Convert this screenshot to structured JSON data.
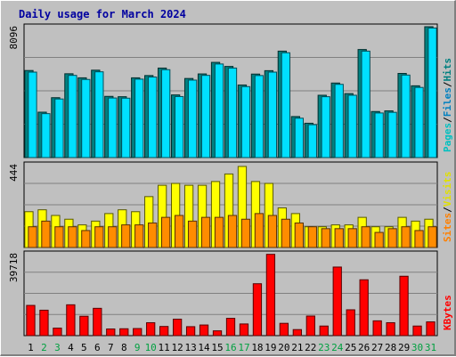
{
  "chart_data": {
    "type": "bar",
    "title": "Daily usage for March 2024",
    "categories": [
      "1",
      "2",
      "3",
      "4",
      "5",
      "6",
      "7",
      "8",
      "9",
      "10",
      "11",
      "12",
      "13",
      "14",
      "15",
      "16",
      "17",
      "18",
      "19",
      "20",
      "21",
      "22",
      "23",
      "24",
      "25",
      "26",
      "27",
      "28",
      "29",
      "30",
      "31"
    ],
    "weekend_days": [
      2,
      3,
      9,
      10,
      16,
      17,
      23,
      24,
      30,
      31
    ],
    "panels": [
      {
        "name": "hits-files-pages",
        "ymax": 8096,
        "ymax_label": "8096",
        "side_labels": [
          {
            "text": "Pages",
            "color": "#00c0c0"
          },
          {
            "text": "/",
            "color": "#000000"
          },
          {
            "text": "Files",
            "color": "#0080c0"
          },
          {
            "text": "/",
            "color": "#000000"
          },
          {
            "text": "Hits",
            "color": "#008080"
          }
        ],
        "series": [
          {
            "name": "Hits",
            "color": "#008080",
            "values": [
              5350,
              2790,
              3680,
              5150,
              4900,
              5370,
              3760,
              3740,
              4900,
              5040,
              5500,
              3850,
              4860,
              5140,
              5850,
              5600,
              4460,
              5130,
              5340,
              6540,
              2520,
              2110,
              3830,
              4580,
              3930,
              6640,
              2830,
              2870,
              5170,
              4410,
              8040
            ]
          },
          {
            "name": "Files",
            "color": "#00e0ff",
            "values": [
              5250,
              2700,
              3600,
              5050,
              4800,
              5270,
              3660,
              3650,
              4820,
              4950,
              5400,
              3750,
              4760,
              5050,
              5750,
              5500,
              4360,
              5040,
              5250,
              6440,
              2420,
              2020,
              3740,
              4500,
              3830,
              6540,
              2740,
              2780,
              5070,
              4310,
              7960
            ]
          }
        ]
      },
      {
        "name": "visits-sites",
        "ymax": 444,
        "ymax_label": "444",
        "side_labels": [
          {
            "text": "Sites",
            "color": "#ff8000"
          },
          {
            "text": "/",
            "color": "#000000"
          },
          {
            "text": "Visits",
            "color": "#e0e000"
          }
        ],
        "series": [
          {
            "name": "Visits",
            "color": "#ffff00",
            "values": [
              190,
              200,
              170,
              150,
              120,
              140,
              180,
              200,
              190,
              270,
              330,
              340,
              330,
              330,
              350,
              390,
              430,
              350,
              340,
              210,
              180,
              110,
              110,
              120,
              120,
              160,
              110,
              110,
              160,
              140,
              150
            ]
          },
          {
            "name": "Sites",
            "color": "#ff8c00",
            "values": [
              110,
              140,
              110,
              110,
              90,
              110,
              110,
              120,
              120,
              130,
              160,
              170,
              140,
              160,
              160,
              170,
              150,
              180,
              170,
              150,
              130,
              110,
              100,
              100,
              100,
              110,
              80,
              100,
              110,
              90,
              110
            ]
          }
        ]
      },
      {
        "name": "kbytes",
        "ymax": 39718,
        "ymax_label": "39718",
        "side_labels": [
          {
            "text": "KBytes",
            "color": "#ff0000"
          }
        ],
        "series": [
          {
            "name": "KBytes",
            "color": "#ff0000",
            "values": [
              14500,
              12200,
              3600,
              14800,
              9300,
              13100,
              3200,
              3300,
              3400,
              6200,
              4400,
              7900,
              4300,
              5100,
              2300,
              8300,
              5600,
              24900,
              39000,
              5900,
              2900,
              9400,
              4600,
              32900,
              12400,
              26800,
              7100,
              6200,
              28500,
              4600,
              6600
            ]
          }
        ]
      }
    ]
  }
}
